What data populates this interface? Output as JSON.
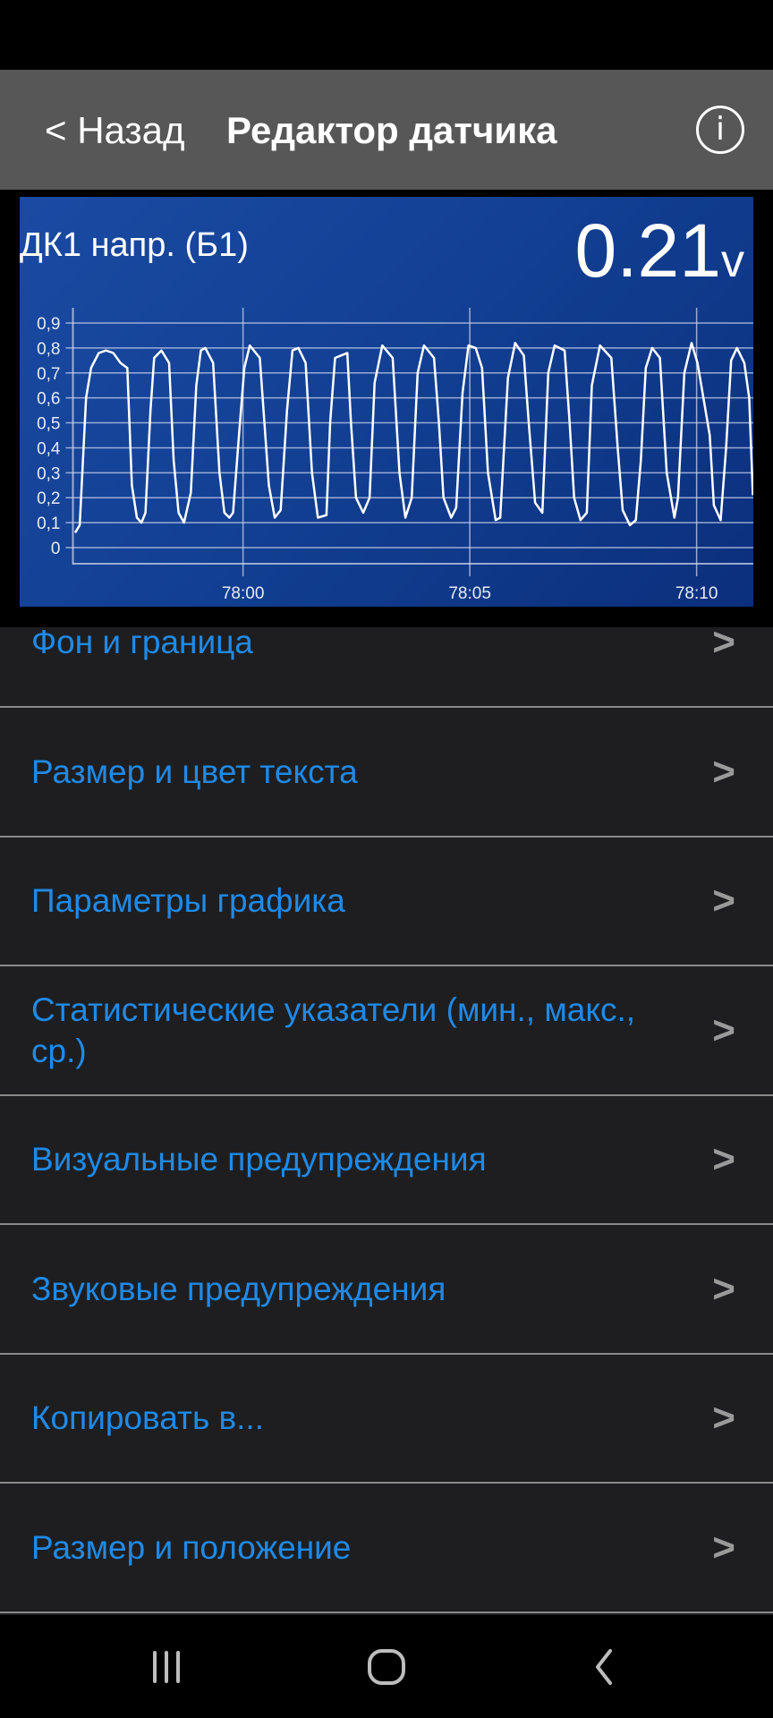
{
  "header": {
    "back_label": "< Назад",
    "title": "Редактор датчика",
    "info_icon": "info-circle-icon"
  },
  "gauge": {
    "name": "ДК1 напр. (Б1)",
    "value": "0.21",
    "unit": "v",
    "background": "#1a4aa3",
    "line_color": "#ffffff"
  },
  "chart_data": {
    "type": "line",
    "title": "",
    "xlabel": "",
    "ylabel": "",
    "ylim": [
      0,
      0.9
    ],
    "xlim": [
      "77:56.25",
      "78:11.25"
    ],
    "y_ticks": [
      "0",
      "0,1",
      "0,2",
      "0,3",
      "0,4",
      "0,5",
      "0,6",
      "0,7",
      "0,8",
      "0,9"
    ],
    "x_ticks": [
      "78:00",
      "78:05",
      "78:10"
    ],
    "grid": true,
    "series": [
      {
        "x": [
          "77:56.30",
          "77:56.40",
          "77:56.54",
          "77:56.65",
          "77:56.82",
          "77:56.98",
          "77:57.14",
          "77:57.30",
          "77:57.45",
          "77:57.55",
          "77:57.66",
          "77:57.76",
          "77:57.85",
          "77:57.96",
          "77:58.04",
          "77:58.20",
          "77:58.37",
          "77:58.47",
          "77:58.58",
          "77:58.70",
          "77:58.85",
          "77:58.97",
          "77:59.07",
          "77:59.17",
          "77:59.34",
          "77:59.48",
          "77:59.59",
          "77:59.70",
          "77:59.78",
          "77:59.91",
          "78:00.03",
          "78:00.15",
          "78:00.37",
          "78:00.57",
          "78:00.70",
          "78:00.83",
          "78:00.97",
          "78:01.09",
          "78:01.22",
          "78:01.38",
          "78:01.52",
          "78:01.65",
          "78:01.84",
          "78:01.92",
          "78:02.03",
          "78:02.30",
          "78:02.38",
          "78:02.49",
          "78:02.65",
          "78:02.79",
          "78:02.90",
          "78:03.07",
          "78:03.30",
          "78:03.45",
          "78:03.58",
          "78:03.72",
          "78:03.85",
          "78:03.99",
          "78:04.21",
          "78:04.32",
          "78:04.42",
          "78:04.59",
          "78:04.70",
          "78:04.84",
          "78:04.97",
          "78:05.13",
          "78:05.27",
          "78:05.40",
          "78:05.57",
          "78:05.67",
          "78:05.84",
          "78:06.00",
          "78:06.19",
          "78:06.30",
          "78:06.44",
          "78:06.60",
          "78:06.73",
          "78:06.87",
          "78:07.09",
          "78:07.20",
          "78:07.30",
          "78:07.44",
          "78:07.58",
          "78:07.69",
          "78:07.87",
          "78:08.12",
          "78:08.26",
          "78:08.37",
          "78:08.53",
          "78:08.66",
          "78:08.77",
          "78:08.88",
          "78:09.02",
          "78:09.19",
          "78:09.34",
          "78:09.51",
          "78:09.59",
          "78:09.73",
          "78:09.89",
          "78:10.02",
          "78:10.29",
          "78:10.38",
          "78:10.53",
          "78:10.65",
          "78:10.76",
          "78:10.89",
          "78:11.05",
          "78:11.16",
          "78:11.24"
        ],
        "y": [
          0.06,
          0.09,
          0.6,
          0.72,
          0.78,
          0.79,
          0.78,
          0.74,
          0.72,
          0.25,
          0.12,
          0.1,
          0.14,
          0.55,
          0.76,
          0.79,
          0.74,
          0.35,
          0.14,
          0.1,
          0.22,
          0.65,
          0.79,
          0.8,
          0.74,
          0.3,
          0.14,
          0.12,
          0.14,
          0.45,
          0.72,
          0.81,
          0.76,
          0.25,
          0.12,
          0.15,
          0.55,
          0.79,
          0.8,
          0.74,
          0.3,
          0.12,
          0.13,
          0.5,
          0.76,
          0.78,
          0.5,
          0.2,
          0.14,
          0.2,
          0.66,
          0.81,
          0.76,
          0.3,
          0.12,
          0.2,
          0.7,
          0.81,
          0.76,
          0.5,
          0.2,
          0.12,
          0.16,
          0.62,
          0.81,
          0.8,
          0.72,
          0.3,
          0.11,
          0.12,
          0.68,
          0.82,
          0.77,
          0.5,
          0.18,
          0.14,
          0.7,
          0.81,
          0.79,
          0.5,
          0.2,
          0.11,
          0.14,
          0.65,
          0.81,
          0.76,
          0.4,
          0.15,
          0.09,
          0.11,
          0.35,
          0.72,
          0.8,
          0.76,
          0.3,
          0.12,
          0.2,
          0.7,
          0.82,
          0.74,
          0.45,
          0.17,
          0.11,
          0.4,
          0.75,
          0.8,
          0.74,
          0.6,
          0.21
        ]
      }
    ]
  },
  "menu": {
    "items": [
      {
        "label": "Фон и граница"
      },
      {
        "label": "Размер и цвет текста"
      },
      {
        "label": "Параметры графика"
      },
      {
        "label": "Статистические указатели (мин., макс., ср.)"
      },
      {
        "label": "Визуальные предупреждения"
      },
      {
        "label": "Звуковые предупреждения"
      },
      {
        "label": "Копировать в..."
      },
      {
        "label": "Размер и положение"
      }
    ],
    "chevron": ">",
    "label_color": "#1f8ae8"
  },
  "nav": {
    "recents_icon": "recents-icon",
    "home_icon": "home-icon",
    "back_icon": "back-icon"
  }
}
